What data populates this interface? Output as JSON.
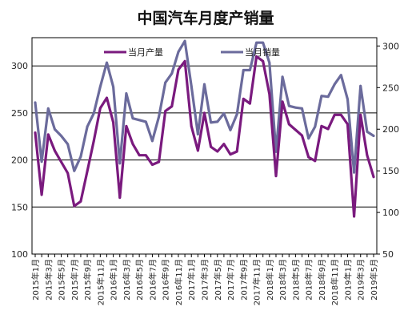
{
  "chart_data": {
    "type": "line",
    "title": "中国汽车月度产销量",
    "xlabel": "",
    "ylabel": "",
    "y_left_lim": [
      100,
      330
    ],
    "y_left_ticks": [
      100,
      150,
      200,
      250,
      300
    ],
    "y_right_lim": [
      50,
      310
    ],
    "y_right_ticks": [
      50,
      100,
      150,
      200,
      250,
      300
    ],
    "grid": true,
    "legend_placement": "top",
    "categories": [
      "2015年1月",
      "2015年2月",
      "2015年3月",
      "2015年4月",
      "2015年5月",
      "2015年6月",
      "2015年7月",
      "2015年8月",
      "2015年9月",
      "2015年10月",
      "2015年11月",
      "2015年12月",
      "2016年1月",
      "2016年2月",
      "2016年3月",
      "2016年4月",
      "2016年5月",
      "2016年6月",
      "2016年7月",
      "2016年8月",
      "2016年9月",
      "2016年10月",
      "2016年11月",
      "2016年12月",
      "2017年1月",
      "2017年2月",
      "2017年3月",
      "2017年4月",
      "2017年5月",
      "2017年6月",
      "2017年7月",
      "2017年8月",
      "2017年9月",
      "2017年10月",
      "2017年11月",
      "2017年12月",
      "2018年1月",
      "2018年2月",
      "2018年3月",
      "2018年4月",
      "2018年5月",
      "2018年6月",
      "2018年7月",
      "2018年8月",
      "2018年9月",
      "2018年10月",
      "2018年11月",
      "2018年12月",
      "2019年1月",
      "2019年2月",
      "2019年3月",
      "2019年4月",
      "2019年5月"
    ],
    "x_tick_labels": [
      "2015年1月",
      "2015年3月",
      "2015年5月",
      "2015年7月",
      "2015年9月",
      "2015年11月",
      "2016年1月",
      "2016年3月",
      "2016年5月",
      "2016年7月",
      "2016年9月",
      "2016年11月",
      "2017年1月",
      "2017年3月",
      "2017年5月",
      "2017年7月",
      "2017年9月",
      "2017年11月",
      "2018年1月",
      "2018年3月",
      "2018年5月",
      "2018年7月",
      "2018年9月",
      "2018年11月",
      "2019年1月",
      "2019年3月",
      "2019年5月"
    ],
    "series": [
      {
        "name": "当月产量",
        "axis": "left",
        "color": "#7a1a7e",
        "values": [
          229,
          163,
          227,
          210,
          198,
          186,
          151,
          156,
          188,
          220,
          255,
          266,
          240,
          160,
          236,
          217,
          205,
          205,
          195,
          198,
          252,
          257,
          296,
          305,
          236,
          210,
          250,
          214,
          209,
          217,
          206,
          209,
          265,
          260,
          310,
          305,
          270,
          183,
          262,
          238,
          232,
          226,
          203,
          199,
          236,
          233,
          248,
          248,
          238,
          140,
          248,
          205,
          182
        ]
      },
      {
        "name": "当月销量",
        "axis": "right",
        "color": "#6b6b9c",
        "values": [
          232,
          161,
          225,
          200,
          192,
          182,
          150,
          167,
          203,
          219,
          251,
          280,
          251,
          159,
          243,
          213,
          211,
          209,
          186,
          215,
          256,
          267,
          293,
          306,
          252,
          194,
          254,
          208,
          209,
          219,
          199,
          218,
          271,
          271,
          304,
          304,
          280,
          173,
          263,
          228,
          226,
          225,
          189,
          203,
          240,
          239,
          254,
          265,
          236,
          148,
          252,
          197,
          192
        ]
      }
    ]
  }
}
